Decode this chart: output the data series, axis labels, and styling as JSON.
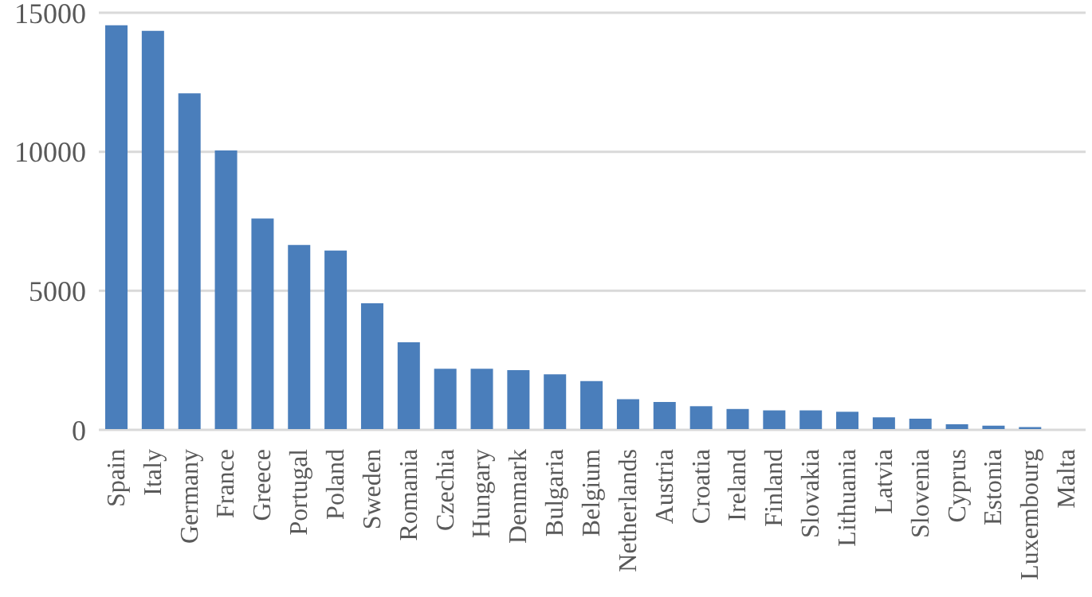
{
  "chart_data": {
    "type": "bar",
    "categories": [
      "Spain",
      "Italy",
      "Germany",
      "France",
      "Greece",
      "Portugal",
      "Poland",
      "Sweden",
      "Romania",
      "Czechia",
      "Hungary",
      "Denmark",
      "Bulgaria",
      "Belgium",
      "Netherlands",
      "Austria",
      "Croatia",
      "Ireland",
      "Finland",
      "Slovakia",
      "Lithuania",
      "Latvia",
      "Slovenia",
      "Cyprus",
      "Estonia",
      "Luxembourg",
      "Malta"
    ],
    "values": [
      14550,
      14350,
      12100,
      10050,
      7600,
      6650,
      6450,
      4550,
      3150,
      2200,
      2200,
      2150,
      2000,
      1750,
      1100,
      1000,
      850,
      750,
      700,
      700,
      650,
      450,
      400,
      200,
      150,
      100,
      0
    ],
    "color": "#4a7ebb",
    "ylim": [
      0,
      15000
    ],
    "yticks": [
      0,
      5000,
      10000,
      15000
    ],
    "grid": "y"
  }
}
